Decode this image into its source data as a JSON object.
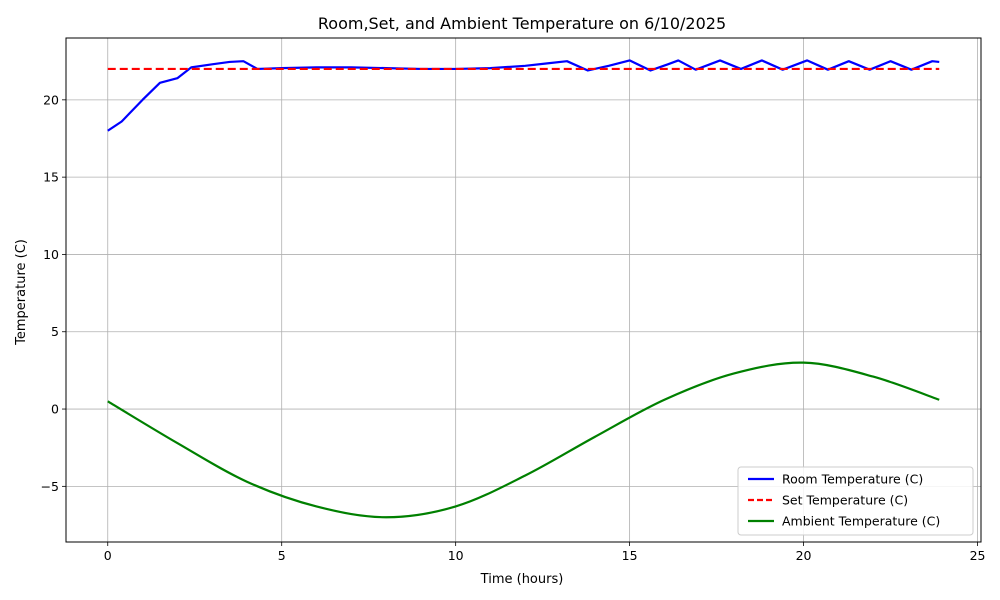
{
  "chart_data": {
    "type": "line",
    "title": "Room,Set, and Ambient Temperature on 6/10/2025",
    "xlabel": "Time (hours)",
    "ylabel": "Temperature (C)",
    "xlim": [
      -1.2,
      25.1
    ],
    "ylim": [
      -8.6,
      24.0
    ],
    "xticks": [
      0,
      5,
      10,
      15,
      20,
      25
    ],
    "yticks": [
      -5,
      0,
      5,
      10,
      15,
      20
    ],
    "ytick_labels": [
      "−5",
      "0",
      "5",
      "10",
      "15",
      "20"
    ],
    "grid": true,
    "legend_position": "bottom-right",
    "series": [
      {
        "name": "Room Temperature (C)",
        "color": "#0000ff",
        "style": "solid",
        "x": [
          0,
          0.4,
          1.0,
          1.5,
          2.0,
          2.4,
          3.0,
          3.5,
          3.9,
          4.3,
          5.0,
          6.0,
          7.0,
          8.0,
          9.0,
          10.0,
          11.0,
          12.0,
          12.6,
          13.2,
          13.8,
          14.4,
          15.0,
          15.6,
          16.1,
          16.4,
          16.9,
          17.6,
          18.2,
          18.8,
          19.4,
          20.1,
          20.7,
          21.3,
          21.9,
          22.5,
          23.1,
          23.7,
          23.9
        ],
        "y": [
          18.0,
          18.6,
          20.0,
          21.1,
          21.4,
          22.1,
          22.3,
          22.45,
          22.5,
          22.0,
          22.05,
          22.1,
          22.1,
          22.05,
          22.0,
          22.0,
          22.05,
          22.2,
          22.35,
          22.5,
          21.9,
          22.2,
          22.55,
          21.9,
          22.3,
          22.55,
          21.95,
          22.55,
          22.0,
          22.55,
          21.95,
          22.55,
          21.95,
          22.5,
          21.95,
          22.5,
          21.95,
          22.5,
          22.45
        ]
      },
      {
        "name": "Set Temperature (C)",
        "color": "#ff0000",
        "style": "dashed",
        "x": [
          0,
          23.9
        ],
        "y": [
          22.0,
          22.0
        ]
      },
      {
        "name": " Ambient Temperature (C)",
        "color": "#008000",
        "style": "solid",
        "x": [
          0,
          2,
          4,
          6,
          8,
          10,
          12,
          14,
          16,
          18,
          20,
          22,
          23.9
        ],
        "y": [
          0.5,
          -2.2,
          -4.7,
          -6.3,
          -7.0,
          -6.3,
          -4.3,
          -1.8,
          0.6,
          2.3,
          3.0,
          2.1,
          0.6
        ]
      }
    ]
  }
}
